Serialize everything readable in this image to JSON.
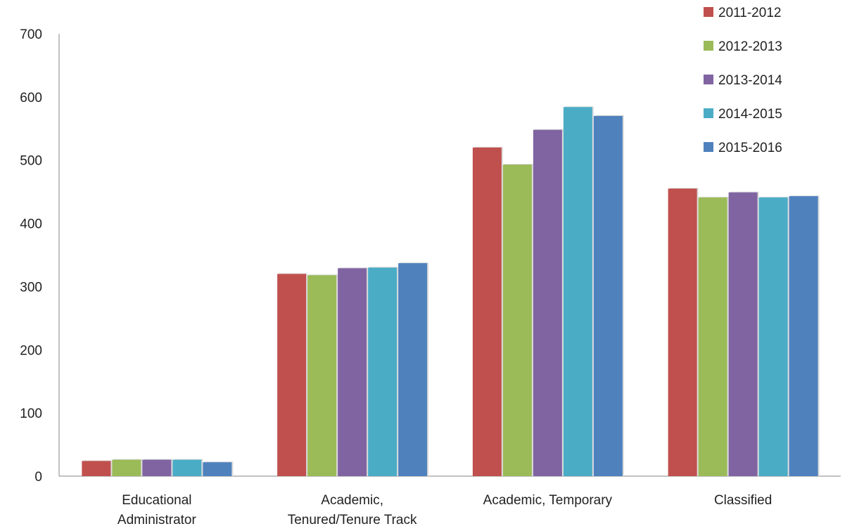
{
  "chart_data": {
    "type": "bar",
    "title": "",
    "xlabel": "",
    "ylabel": "",
    "categories": [
      [
        "Educational",
        "Administrator"
      ],
      [
        "Academic,",
        "Tenured/Tenure Track"
      ],
      [
        "Academic, Temporary"
      ],
      [
        "Classified"
      ]
    ],
    "series": [
      {
        "name": "2011-2012",
        "color": "#c0504d",
        "values": [
          24,
          320,
          520,
          455
        ]
      },
      {
        "name": "2012-2013",
        "color": "#9bbb59",
        "values": [
          26,
          318,
          493,
          441
        ]
      },
      {
        "name": "2013-2014",
        "color": "#8064a2",
        "values": [
          26,
          329,
          548,
          449
        ]
      },
      {
        "name": "2014-2015",
        "color": "#4bacc6",
        "values": [
          26,
          330,
          584,
          441
        ]
      },
      {
        "name": "2015-2016",
        "color": "#4f81bd",
        "values": [
          22,
          337,
          570,
          443
        ]
      }
    ],
    "ylim": [
      0,
      700
    ],
    "yticks": [
      "0",
      "100",
      "200",
      "300",
      "400",
      "500",
      "600",
      "700"
    ],
    "grid": false,
    "legend_position": "top-right"
  }
}
